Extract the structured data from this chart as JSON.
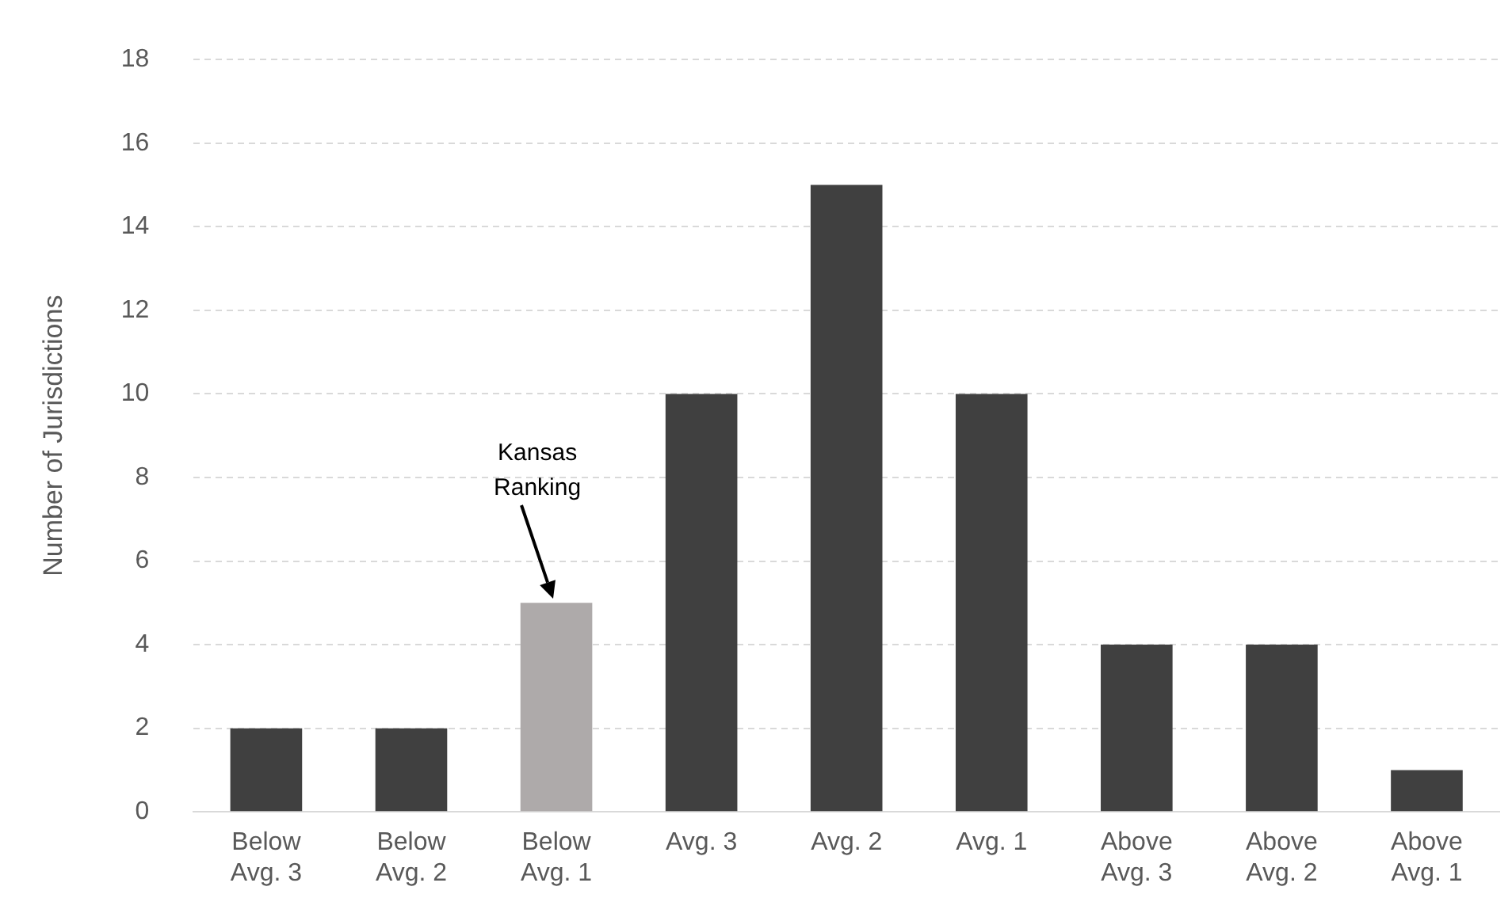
{
  "chart_data": {
    "type": "bar",
    "ylabel": "Number of Jurisdictions",
    "categories": [
      "Below\nAvg. 3",
      "Below\nAvg. 2",
      "Below\nAvg. 1",
      "Avg. 3",
      "Avg. 2",
      "Avg. 1",
      "Above\nAvg. 3",
      "Above\nAvg. 2",
      "Above\nAvg. 1"
    ],
    "values": [
      2,
      2,
      5,
      10,
      15,
      10,
      4,
      4,
      1
    ],
    "colors": [
      "#404040",
      "#404040",
      "#aeaaaa",
      "#404040",
      "#404040",
      "#404040",
      "#404040",
      "#404040",
      "#404040"
    ],
    "ylim": [
      0,
      18
    ],
    "yticks": [
      0,
      2,
      4,
      6,
      8,
      10,
      12,
      14,
      16,
      18
    ],
    "grid": "y",
    "legend": false,
    "annotations": [
      "Kansas\nRanking"
    ]
  }
}
